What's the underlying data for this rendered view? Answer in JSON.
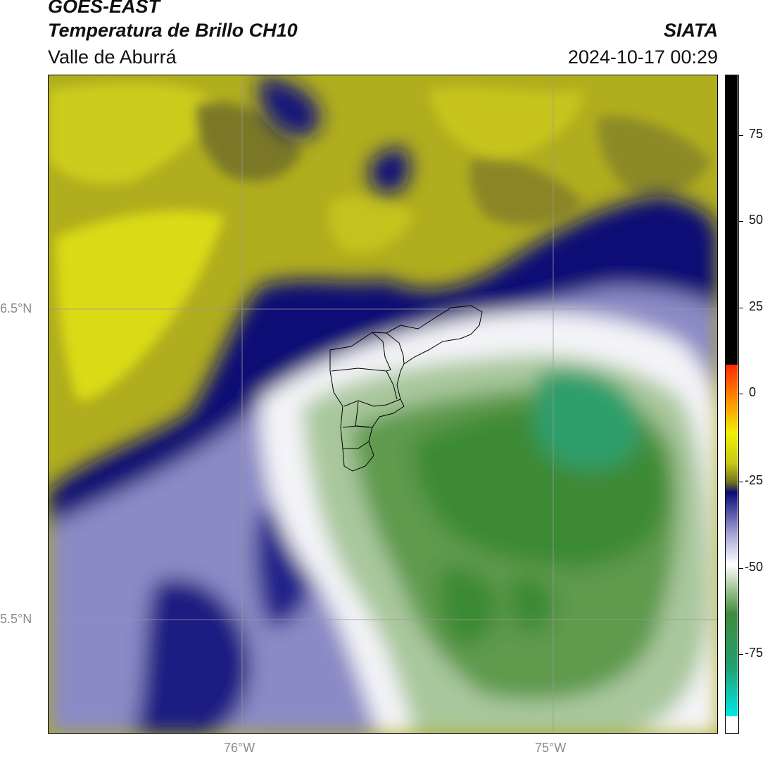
{
  "header": {
    "satellite": "GOES-EAST",
    "product": "Temperatura de Brillo CH10",
    "region": "Valle de Aburrá",
    "organization": "SIATA",
    "datetime": "2024-10-17 00:29"
  },
  "map": {
    "lat_labels": [
      "6.5°N",
      "5.5°N"
    ],
    "lon_labels": [
      "76°W",
      "75°W"
    ]
  },
  "colorbar": {
    "labels": [
      "75",
      "50",
      "25",
      "0",
      "-25",
      "-50",
      "-75"
    ],
    "colors": {
      "black": "#000000",
      "red": "#ff2a00",
      "orange": "#ff9900",
      "yellow": "#f0f000",
      "olive": "#c8c818",
      "navy": "#0a0a78",
      "lavender": "#a8a8d8",
      "white": "#ffffff",
      "green": "#3c8c3c",
      "teal": "#22a070",
      "cyan": "#00e6e6"
    }
  }
}
